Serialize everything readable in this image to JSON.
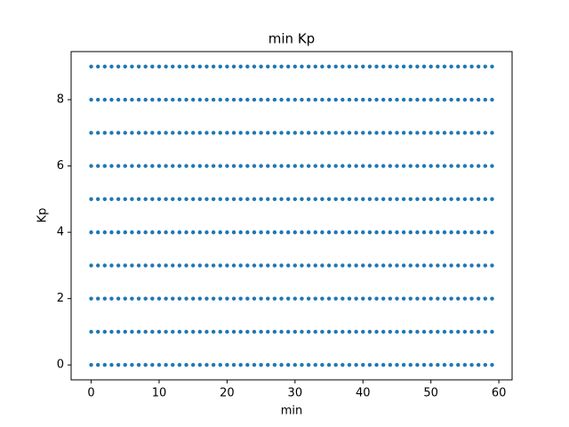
{
  "chart_data": {
    "type": "scatter",
    "title": "min Kp",
    "x_label": "min",
    "y_label": "Kp",
    "color": "#1f77b4",
    "grid": false,
    "xlim": [
      -2.95,
      61.95
    ],
    "ylim": [
      -0.45,
      9.45
    ],
    "xticks": [
      0,
      10,
      20,
      30,
      40,
      50,
      60
    ],
    "yticks": [
      0,
      2,
      4,
      6,
      8
    ],
    "x": [
      0,
      1,
      2,
      3,
      4,
      5,
      6,
      7,
      8,
      9,
      10,
      11,
      12,
      13,
      14,
      15,
      16,
      17,
      18,
      19,
      20,
      21,
      22,
      23,
      24,
      25,
      26,
      27,
      28,
      29,
      30,
      31,
      32,
      33,
      34,
      35,
      36,
      37,
      38,
      39,
      40,
      41,
      42,
      43,
      44,
      45,
      46,
      47,
      48,
      49,
      50,
      51,
      52,
      53,
      54,
      55,
      56,
      57,
      58,
      59
    ],
    "series": [
      {
        "values": [
          0,
          0,
          0,
          0,
          0,
          0,
          0,
          0,
          0,
          0,
          0,
          0,
          0,
          0,
          0,
          0,
          0,
          0,
          0,
          0,
          0,
          0,
          0,
          0,
          0,
          0,
          0,
          0,
          0,
          0,
          0,
          0,
          0,
          0,
          0,
          0,
          0,
          0,
          0,
          0,
          0,
          0,
          0,
          0,
          0,
          0,
          0,
          0,
          0,
          0,
          0,
          0,
          0,
          0,
          0,
          0,
          0,
          0,
          0,
          0
        ]
      },
      {
        "values": [
          1,
          1,
          1,
          1,
          1,
          1,
          1,
          1,
          1,
          1,
          1,
          1,
          1,
          1,
          1,
          1,
          1,
          1,
          1,
          1,
          1,
          1,
          1,
          1,
          1,
          1,
          1,
          1,
          1,
          1,
          1,
          1,
          1,
          1,
          1,
          1,
          1,
          1,
          1,
          1,
          1,
          1,
          1,
          1,
          1,
          1,
          1,
          1,
          1,
          1,
          1,
          1,
          1,
          1,
          1,
          1,
          1,
          1,
          1,
          1
        ]
      },
      {
        "values": [
          2,
          2,
          2,
          2,
          2,
          2,
          2,
          2,
          2,
          2,
          2,
          2,
          2,
          2,
          2,
          2,
          2,
          2,
          2,
          2,
          2,
          2,
          2,
          2,
          2,
          2,
          2,
          2,
          2,
          2,
          2,
          2,
          2,
          2,
          2,
          2,
          2,
          2,
          2,
          2,
          2,
          2,
          2,
          2,
          2,
          2,
          2,
          2,
          2,
          2,
          2,
          2,
          2,
          2,
          2,
          2,
          2,
          2,
          2,
          2
        ]
      },
      {
        "values": [
          3,
          3,
          3,
          3,
          3,
          3,
          3,
          3,
          3,
          3,
          3,
          3,
          3,
          3,
          3,
          3,
          3,
          3,
          3,
          3,
          3,
          3,
          3,
          3,
          3,
          3,
          3,
          3,
          3,
          3,
          3,
          3,
          3,
          3,
          3,
          3,
          3,
          3,
          3,
          3,
          3,
          3,
          3,
          3,
          3,
          3,
          3,
          3,
          3,
          3,
          3,
          3,
          3,
          3,
          3,
          3,
          3,
          3,
          3,
          3
        ]
      },
      {
        "values": [
          4,
          4,
          4,
          4,
          4,
          4,
          4,
          4,
          4,
          4,
          4,
          4,
          4,
          4,
          4,
          4,
          4,
          4,
          4,
          4,
          4,
          4,
          4,
          4,
          4,
          4,
          4,
          4,
          4,
          4,
          4,
          4,
          4,
          4,
          4,
          4,
          4,
          4,
          4,
          4,
          4,
          4,
          4,
          4,
          4,
          4,
          4,
          4,
          4,
          4,
          4,
          4,
          4,
          4,
          4,
          4,
          4,
          4,
          4,
          4
        ]
      },
      {
        "values": [
          5,
          5,
          5,
          5,
          5,
          5,
          5,
          5,
          5,
          5,
          5,
          5,
          5,
          5,
          5,
          5,
          5,
          5,
          5,
          5,
          5,
          5,
          5,
          5,
          5,
          5,
          5,
          5,
          5,
          5,
          5,
          5,
          5,
          5,
          5,
          5,
          5,
          5,
          5,
          5,
          5,
          5,
          5,
          5,
          5,
          5,
          5,
          5,
          5,
          5,
          5,
          5,
          5,
          5,
          5,
          5,
          5,
          5,
          5,
          5
        ]
      },
      {
        "values": [
          6,
          6,
          6,
          6,
          6,
          6,
          6,
          6,
          6,
          6,
          6,
          6,
          6,
          6,
          6,
          6,
          6,
          6,
          6,
          6,
          6,
          6,
          6,
          6,
          6,
          6,
          6,
          6,
          6,
          6,
          6,
          6,
          6,
          6,
          6,
          6,
          6,
          6,
          6,
          6,
          6,
          6,
          6,
          6,
          6,
          6,
          6,
          6,
          6,
          6,
          6,
          6,
          6,
          6,
          6,
          6,
          6,
          6,
          6,
          6
        ]
      },
      {
        "values": [
          7,
          7,
          7,
          7,
          7,
          7,
          7,
          7,
          7,
          7,
          7,
          7,
          7,
          7,
          7,
          7,
          7,
          7,
          7,
          7,
          7,
          7,
          7,
          7,
          7,
          7,
          7,
          7,
          7,
          7,
          7,
          7,
          7,
          7,
          7,
          7,
          7,
          7,
          7,
          7,
          7,
          7,
          7,
          7,
          7,
          7,
          7,
          7,
          7,
          7,
          7,
          7,
          7,
          7,
          7,
          7,
          7,
          7,
          7,
          7
        ]
      },
      {
        "values": [
          8,
          8,
          8,
          8,
          8,
          8,
          8,
          8,
          8,
          8,
          8,
          8,
          8,
          8,
          8,
          8,
          8,
          8,
          8,
          8,
          8,
          8,
          8,
          8,
          8,
          8,
          8,
          8,
          8,
          8,
          8,
          8,
          8,
          8,
          8,
          8,
          8,
          8,
          8,
          8,
          8,
          8,
          8,
          8,
          8,
          8,
          8,
          8,
          8,
          8,
          8,
          8,
          8,
          8,
          8,
          8,
          8,
          8,
          8,
          8
        ]
      },
      {
        "values": [
          9,
          9,
          9,
          9,
          9,
          9,
          9,
          9,
          9,
          9,
          9,
          9,
          9,
          9,
          9,
          9,
          9,
          9,
          9,
          9,
          9,
          9,
          9,
          9,
          9,
          9,
          9,
          9,
          9,
          9,
          9,
          9,
          9,
          9,
          9,
          9,
          9,
          9,
          9,
          9,
          9,
          9,
          9,
          9,
          9,
          9,
          9,
          9,
          9,
          9,
          9,
          9,
          9,
          9,
          9,
          9,
          9,
          9,
          9,
          9
        ]
      }
    ]
  }
}
